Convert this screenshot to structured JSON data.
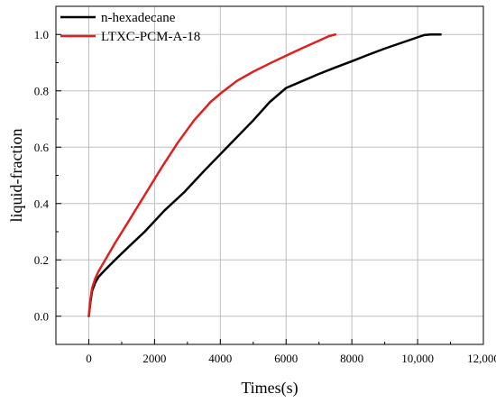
{
  "chart_data": {
    "type": "line",
    "title": "",
    "xlabel": "Times(s)",
    "ylabel": "liquid-fraction",
    "xlim": [
      -1000,
      12000
    ],
    "ylim": [
      -0.1,
      1.1
    ],
    "x_ticks": [
      0,
      2000,
      4000,
      6000,
      8000,
      10000,
      12000
    ],
    "x_tick_labels": [
      "0",
      "2000",
      "4000",
      "6000",
      "8000",
      "10,000",
      "12,000"
    ],
    "y_ticks": [
      0.0,
      0.2,
      0.4,
      0.6,
      0.8,
      1.0
    ],
    "y_tick_labels": [
      "0.0",
      "0.2",
      "0.4",
      "0.6",
      "0.8",
      "1.0"
    ],
    "grid": true,
    "legend_position": "top-left",
    "series": [
      {
        "name": "n-hexadecane",
        "color": "#000000",
        "x": [
          0,
          50,
          100,
          200,
          300,
          500,
          800,
          1200,
          1700,
          2300,
          2900,
          3500,
          4000,
          4500,
          5000,
          5500,
          6000,
          6500,
          7000,
          7500,
          8000,
          8500,
          9000,
          9500,
          10000,
          10200,
          10400,
          10700
        ],
        "y": [
          0,
          0.05,
          0.09,
          0.12,
          0.14,
          0.165,
          0.2,
          0.245,
          0.3,
          0.375,
          0.44,
          0.515,
          0.575,
          0.635,
          0.695,
          0.76,
          0.81,
          0.835,
          0.86,
          0.883,
          0.905,
          0.928,
          0.95,
          0.97,
          0.99,
          0.998,
          1.0,
          1.0
        ]
      },
      {
        "name": "LTXC-PCM-A-18",
        "color": "#e02020",
        "x": [
          0,
          50,
          100,
          200,
          300,
          500,
          800,
          1200,
          1700,
          2200,
          2700,
          3200,
          3700,
          4000,
          4500,
          5000,
          5500,
          6000,
          6500,
          7000,
          7300,
          7500
        ],
        "y": [
          0,
          0.06,
          0.1,
          0.135,
          0.16,
          0.2,
          0.26,
          0.335,
          0.43,
          0.525,
          0.615,
          0.695,
          0.76,
          0.79,
          0.835,
          0.868,
          0.897,
          0.925,
          0.952,
          0.978,
          0.994,
          1.0
        ]
      }
    ]
  }
}
